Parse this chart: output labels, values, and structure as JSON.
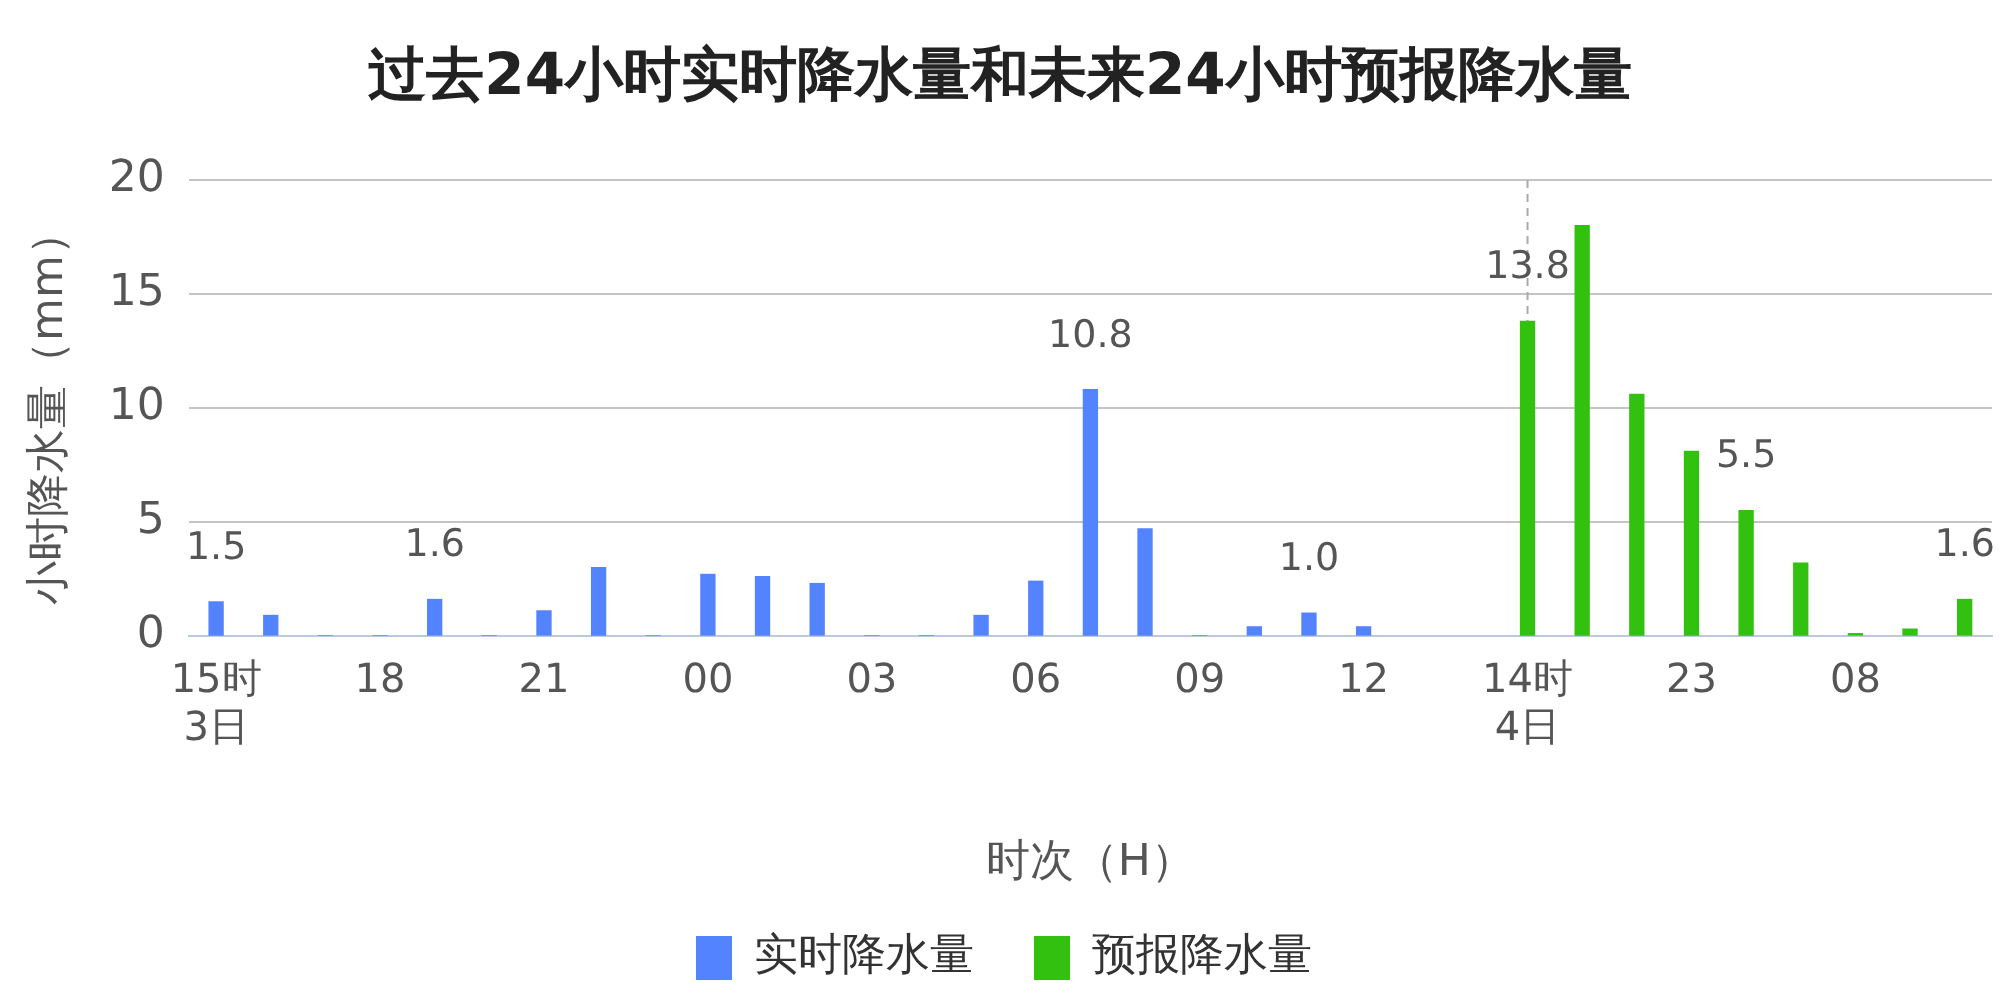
{
  "chart_data": {
    "type": "bar",
    "title": "过去24小时实时降水量和未来24小时预报降水量",
    "xlabel": "时次（H）",
    "ylabel": "小时降水量（mm）",
    "categories": [
      "15时\n3日",
      null,
      null,
      "18",
      null,
      null,
      "21",
      null,
      null,
      "00",
      null,
      null,
      "03",
      null,
      null,
      "06",
      null,
      null,
      "09",
      null,
      null,
      "12",
      null,
      null,
      "14时\n4日",
      null,
      null,
      "23",
      null,
      null,
      "08",
      null,
      null
    ],
    "series": [
      {
        "name": "实时降水量",
        "color": "#5383fe",
        "values": [
          1.5,
          0.9,
          0,
          0,
          1.6,
          0,
          1.1,
          3.0,
          0,
          2.7,
          2.6,
          2.3,
          0,
          0,
          0.9,
          2.4,
          10.8,
          4.7,
          0,
          0.4,
          1.0,
          0.4,
          null,
          null,
          null,
          null,
          null,
          null,
          null,
          null,
          null,
          null,
          null
        ],
        "value_labels": [
          "1.5",
          null,
          null,
          null,
          "1.6",
          null,
          null,
          null,
          null,
          null,
          null,
          null,
          null,
          null,
          null,
          null,
          "10.8",
          null,
          null,
          null,
          "1.0",
          null,
          null,
          null,
          null,
          null,
          null,
          null,
          null,
          null,
          null,
          null,
          null
        ]
      },
      {
        "name": "预报降水量",
        "color": "#33c10f",
        "values": [
          null,
          null,
          null,
          null,
          null,
          null,
          null,
          null,
          null,
          null,
          null,
          null,
          null,
          null,
          null,
          null,
          null,
          null,
          null,
          null,
          null,
          null,
          null,
          null,
          13.8,
          18.0,
          10.6,
          8.1,
          5.5,
          3.2,
          0.1,
          0.3,
          1.6
        ],
        "value_labels": [
          null,
          null,
          null,
          null,
          null,
          null,
          null,
          null,
          null,
          null,
          null,
          null,
          null,
          null,
          null,
          null,
          null,
          null,
          null,
          null,
          null,
          null,
          null,
          null,
          "13.8",
          null,
          null,
          null,
          "5.5",
          null,
          null,
          null,
          "1.6"
        ]
      }
    ],
    "ylim": [
      0,
      20
    ],
    "yticks": [
      0,
      5,
      10,
      15,
      20
    ],
    "grid": "y",
    "legend": "bottom",
    "ref_lines": [
      {
        "axis": "x",
        "value": "14时\n4日",
        "label": null,
        "color": "#aaaaaa",
        "line_style": "dashed"
      }
    ]
  }
}
